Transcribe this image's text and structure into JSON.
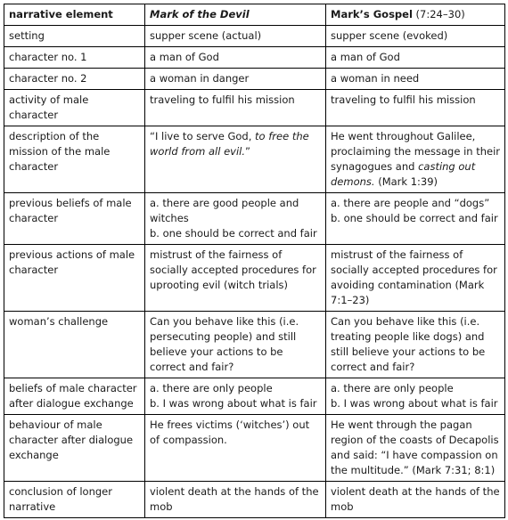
{
  "header": {
    "col1": "narrative element",
    "col2": "Mark of the Devil",
    "col3_main": "Mark’s Gospel",
    "col3_ref": " (7:24–30)"
  },
  "rows": [
    {
      "label": "setting",
      "devil": "supper scene (actual)",
      "gospel": "supper scene (evoked)"
    },
    {
      "label": "character no. 1",
      "devil": "a man of God",
      "gospel": "a man of God"
    },
    {
      "label": "character no. 2",
      "devil": "a woman in danger",
      "gospel": "a woman in need"
    },
    {
      "label": "activity of male character",
      "devil": "traveling to fulfil his mission",
      "gospel": "traveling to fulfil his mission"
    },
    {
      "label": "description of the mission of the male character",
      "devil_a": "“I live to serve God, ",
      "devil_b": "to free the world from all evil.",
      "devil_c": "”",
      "gospel_a": "He went throughout Galilee, proclaiming the message in their synagogues and ",
      "gospel_b": "casting out demons.",
      "gospel_c": " (Mark 1:39)"
    },
    {
      "label": "previous beliefs of male character",
      "devil_1": "a. there are good people and witches",
      "devil_2": "b. one should be correct and fair",
      "gospel_1": "a. there are people and “dogs”",
      "gospel_2": "b. one should be correct and fair"
    },
    {
      "label": "previous actions of male character",
      "devil": "mistrust of the fairness of socially accepted procedures for uprooting evil (witch trials)",
      "gospel": "mistrust of the fairness of socially accepted procedures for avoiding contamination (Mark 7:1–23)"
    },
    {
      "label": "woman’s challenge",
      "devil": "Can you behave like this (i.e. persecuting people) and still believe your actions to be correct and fair?",
      "gospel": "Can you behave like this (i.e. treating people like dogs) and still believe your actions to be correct and fair?"
    },
    {
      "label": "beliefs of male character after dialogue exchange",
      "devil_1": "a. there are only people",
      "devil_2": "b. I was wrong about what is fair",
      "gospel_1": "a. there are only people",
      "gospel_2": "b. I was wrong about what is fair"
    },
    {
      "label": "behaviour of male character after dialogue exchange",
      "devil": "He frees victims (‘witches’) out of compassion.",
      "gospel": "He went through the pagan region of the coasts of Decapolis and said: “I have compassion on the multitude.” (Mark 7:31; 8:1)"
    },
    {
      "label": "conclusion of longer narrative",
      "devil": "violent death at the hands of the mob",
      "gospel": "violent death at the hands of the mob"
    }
  ]
}
